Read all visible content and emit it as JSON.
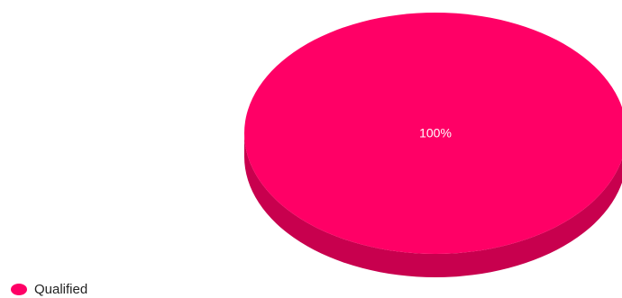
{
  "chart_data": {
    "type": "pie",
    "style": "3d",
    "series": [
      {
        "name": "Qualified",
        "value": 100,
        "label": "100%",
        "color": "#ff0066",
        "side_color": "#c8004e"
      }
    ],
    "legend": {
      "position": "bottom-left"
    }
  }
}
